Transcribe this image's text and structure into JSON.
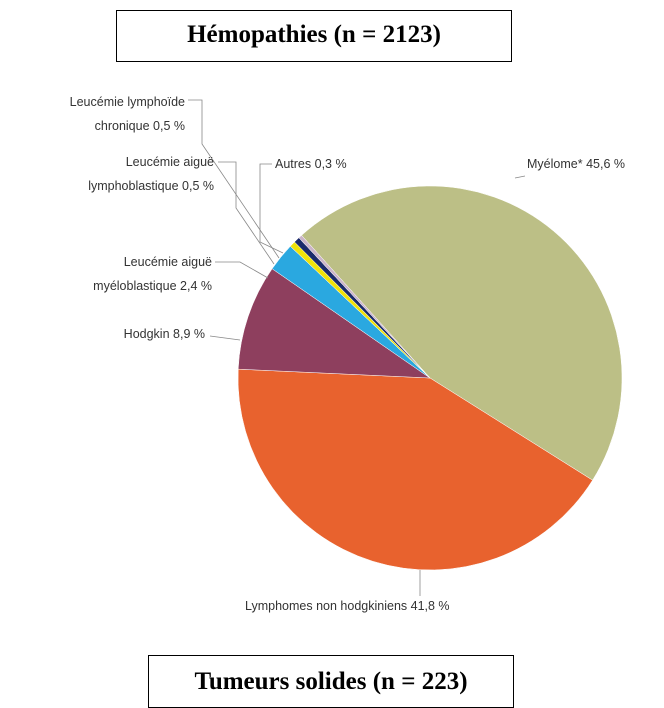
{
  "chart_data": {
    "type": "pie",
    "title": "Hémopathies (n = 2123)",
    "categories": [
      "Myélome*",
      "Lymphomes non hodgkiniens",
      "Hodgkin",
      "Leucémie aiguë\nmyéloblastique",
      "Leucémie aiguë\nlymphoblastique",
      "Leucémie lymphoïde\nchronique",
      "Autres"
    ],
    "values": [
      45.6,
      41.8,
      8.9,
      2.4,
      0.5,
      0.5,
      0.3
    ],
    "value_labels": [
      "45,6 %",
      "41,8 %",
      "8,9 %",
      "2,4 %",
      "0,5 %",
      "0,5 %",
      "0,3 %"
    ],
    "colors": [
      "#bcbf86",
      "#e8622e",
      "#8e3f5e",
      "#2aa8e0",
      "#f0e20a",
      "#1b2a6b",
      "#cbb4c8"
    ]
  },
  "section": {
    "title": "Tumeurs solides (n = 223)"
  }
}
